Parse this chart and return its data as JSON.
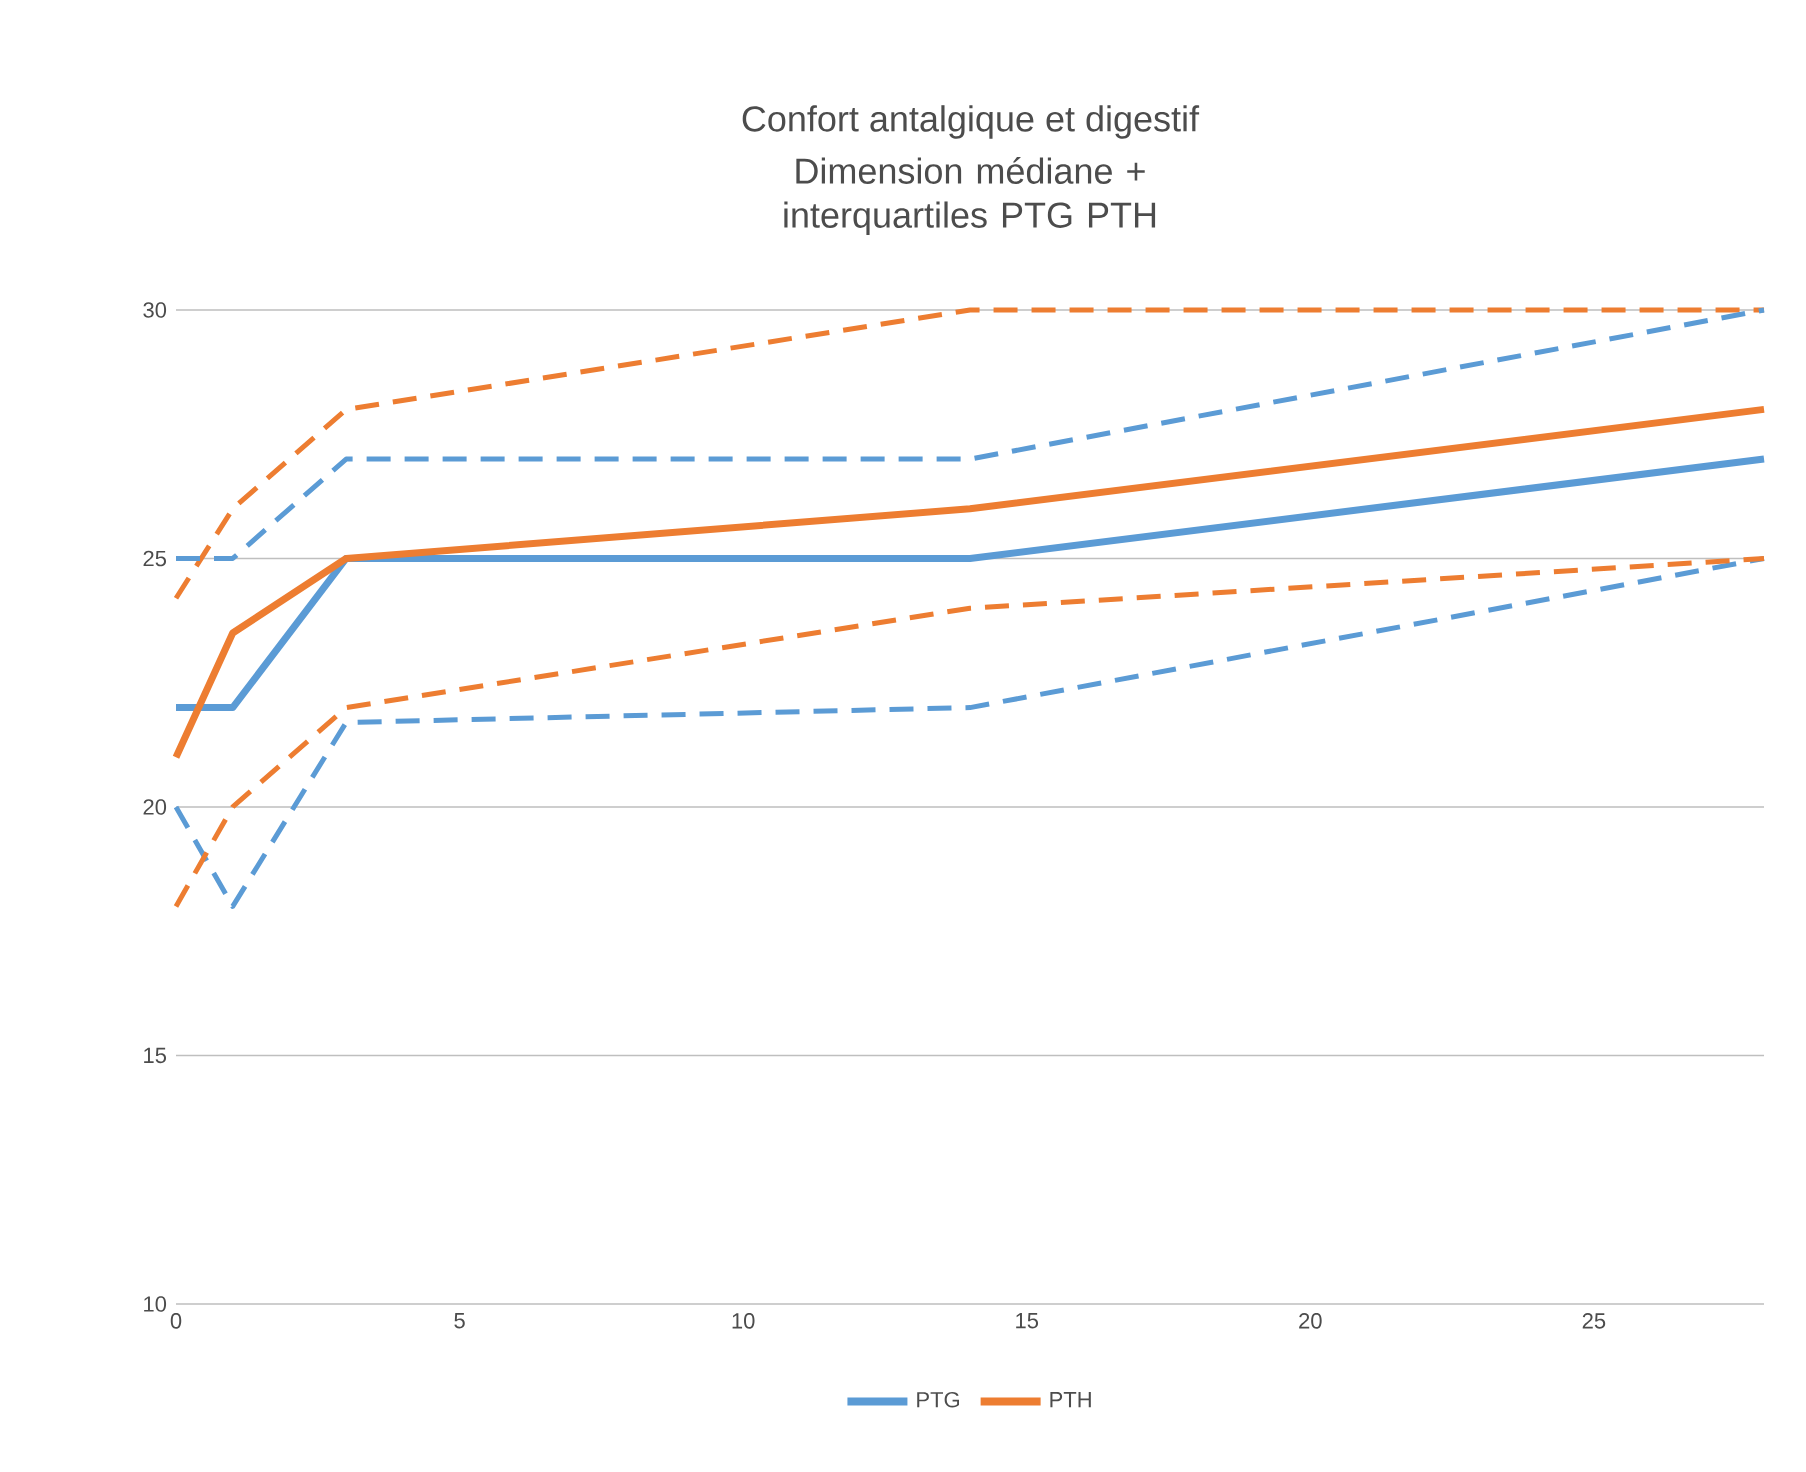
{
  "chart_data": {
    "type": "line",
    "title": "Confort antalgique et digestif",
    "subtitle": "Dimension médiane + interquartiles PTG PTH",
    "x": [
      0,
      1,
      3,
      14,
      28
    ],
    "series": [
      {
        "name": "PTG",
        "color": "#5b9bd5",
        "line_style": "solid",
        "values": [
          22,
          22,
          25,
          25,
          27
        ]
      },
      {
        "name": "PTH",
        "color": "#ed7d31",
        "line_style": "solid",
        "values": [
          21,
          23.5,
          25,
          26,
          28
        ]
      },
      {
        "color": "#5b9bd5",
        "line_style": "dashed",
        "values": [
          20,
          18,
          21.7,
          22,
          25
        ]
      },
      {
        "color": "#ed7d31",
        "line_style": "dashed",
        "values": [
          18,
          20,
          22,
          24,
          25
        ]
      },
      {
        "color": "#ed7d31",
        "line_style": "dashed",
        "values": [
          24.2,
          26,
          28,
          30,
          30
        ]
      },
      {
        "color": "#5b9bd5",
        "line_style": "dashed",
        "values": [
          25,
          25,
          27,
          27,
          30
        ]
      }
    ],
    "xlim": [
      0,
      28
    ],
    "ylim": [
      10,
      30
    ],
    "xticks": [
      0,
      5,
      10,
      15,
      20,
      25
    ],
    "yticks": [
      10,
      15,
      20,
      25,
      30
    ],
    "grid": "y",
    "legend": "bottom",
    "marker": "none"
  }
}
